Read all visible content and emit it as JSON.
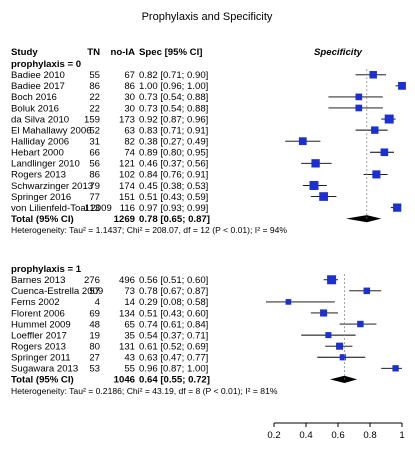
{
  "chart_data": {
    "type": "forest",
    "title": "Prophylaxis and Specificity",
    "columns": {
      "study": "Study",
      "tn": "TN",
      "noia": "no-IA",
      "ci": "Spec [95% CI]",
      "plot": "Specificity"
    },
    "xaxis": {
      "min": 0.2,
      "max": 1.0,
      "ticks": [
        0.2,
        0.4,
        0.6,
        0.8,
        1
      ],
      "tick_labels": [
        "0.2",
        "0.4",
        "0.6",
        "0.8",
        "1"
      ]
    },
    "colors": {
      "study_marker": "#1c2fd0",
      "pooled_diamond": "#000000"
    },
    "groups": [
      {
        "label": "prophylaxis = 0",
        "studies": [
          {
            "name": "Badiee 2010",
            "tn": "55",
            "noia": "67",
            "ci": "0.82 [0.71; 0.90]",
            "est": 0.82,
            "lo": 0.71,
            "hi": 0.9
          },
          {
            "name": "Badiee 2017",
            "tn": "86",
            "noia": "86",
            "ci": "1.00 [0.96; 1.00]",
            "est": 1.0,
            "lo": 0.96,
            "hi": 1.0
          },
          {
            "name": "Boch 2016",
            "tn": "22",
            "noia": "30",
            "ci": "0.73 [0.54; 0.88]",
            "est": 0.73,
            "lo": 0.54,
            "hi": 0.88
          },
          {
            "name": "Boluk 2016",
            "tn": "22",
            "noia": "30",
            "ci": "0.73 [0.54; 0.88]",
            "est": 0.73,
            "lo": 0.54,
            "hi": 0.88
          },
          {
            "name": "da Silva 2010",
            "tn": "159",
            "noia": "173",
            "ci": "0.92 [0.87; 0.96]",
            "est": 0.92,
            "lo": 0.87,
            "hi": 0.96
          },
          {
            "name": "El Mahallawy 2006",
            "tn": "52",
            "noia": "63",
            "ci": "0.83 [0.71; 0.91]",
            "est": 0.83,
            "lo": 0.71,
            "hi": 0.91
          },
          {
            "name": "Halliday 2006",
            "tn": "31",
            "noia": "82",
            "ci": "0.38 [0.27; 0.49]",
            "est": 0.38,
            "lo": 0.27,
            "hi": 0.49
          },
          {
            "name": "Hebart 2000",
            "tn": "66",
            "noia": "74",
            "ci": "0.89 [0.80; 0.95]",
            "est": 0.89,
            "lo": 0.8,
            "hi": 0.95
          },
          {
            "name": "Landlinger 2010",
            "tn": "56",
            "noia": "121",
            "ci": "0.46 [0.37; 0.56]",
            "est": 0.46,
            "lo": 0.37,
            "hi": 0.56
          },
          {
            "name": "Rogers 2013",
            "tn": "86",
            "noia": "102",
            "ci": "0.84 [0.76; 0.91]",
            "est": 0.84,
            "lo": 0.76,
            "hi": 0.91
          },
          {
            "name": "Schwarzinger 2013",
            "tn": "79",
            "noia": "174",
            "ci": "0.45 [0.38; 0.53]",
            "est": 0.45,
            "lo": 0.38,
            "hi": 0.53
          },
          {
            "name": "Springer 2016",
            "tn": "77",
            "noia": "151",
            "ci": "0.51 [0.43; 0.59]",
            "est": 0.51,
            "lo": 0.43,
            "hi": 0.59
          },
          {
            "name": "von Lilienfeld-Toal 2009",
            "tn": "113",
            "noia": "116",
            "ci": "0.97 [0.93; 0.99]",
            "est": 0.97,
            "lo": 0.93,
            "hi": 0.99
          }
        ],
        "total": {
          "label": "Total (95% CI)",
          "noia": "1269",
          "ci": "0.78 [0.65; 0.87]",
          "est": 0.78,
          "lo": 0.65,
          "hi": 0.87
        },
        "heterogeneity": "Heterogeneity: Tau² = 1.1437; Chi² = 208.07, df = 12 (P < 0.01); I² = 94%"
      },
      {
        "label": "prophylaxis = 1",
        "studies": [
          {
            "name": "Barnes 2013",
            "tn": "276",
            "noia": "496",
            "ci": "0.56 [0.51; 0.60]",
            "est": 0.56,
            "lo": 0.51,
            "hi": 0.6
          },
          {
            "name": "Cuenca-Estrella 2009",
            "tn": "57",
            "noia": "73",
            "ci": "0.78 [0.67; 0.87]",
            "est": 0.78,
            "lo": 0.67,
            "hi": 0.87
          },
          {
            "name": "Ferns 2002",
            "tn": "4",
            "noia": "14",
            "ci": "0.29 [0.08; 0.58]",
            "est": 0.29,
            "lo": 0.08,
            "hi": 0.58
          },
          {
            "name": "Florent 2006",
            "tn": "69",
            "noia": "134",
            "ci": "0.51 [0.43; 0.60]",
            "est": 0.51,
            "lo": 0.43,
            "hi": 0.6
          },
          {
            "name": "Hummel 2009",
            "tn": "48",
            "noia": "65",
            "ci": "0.74 [0.61; 0.84]",
            "est": 0.74,
            "lo": 0.61,
            "hi": 0.84
          },
          {
            "name": "Loeffler 2017",
            "tn": "19",
            "noia": "35",
            "ci": "0.54 [0.37; 0.71]",
            "est": 0.54,
            "lo": 0.37,
            "hi": 0.71
          },
          {
            "name": "Rogers 2013",
            "tn": "80",
            "noia": "131",
            "ci": "0.61 [0.52; 0.69]",
            "est": 0.61,
            "lo": 0.52,
            "hi": 0.69
          },
          {
            "name": "Springer 2011",
            "tn": "27",
            "noia": "43",
            "ci": "0.63 [0.47; 0.77]",
            "est": 0.63,
            "lo": 0.47,
            "hi": 0.77
          },
          {
            "name": "Sugawara 2013",
            "tn": "53",
            "noia": "55",
            "ci": "0.96 [0.87; 1.00]",
            "est": 0.96,
            "lo": 0.87,
            "hi": 1.0
          }
        ],
        "total": {
          "label": "Total (95% CI)",
          "noia": "1046",
          "ci": "0.64 [0.55; 0.72]",
          "est": 0.64,
          "lo": 0.55,
          "hi": 0.72
        },
        "heterogeneity": "Heterogeneity: Tau² = 0.2186; Chi² = 43.19, df = 8 (P < 0.01); I² = 81%"
      }
    ]
  }
}
